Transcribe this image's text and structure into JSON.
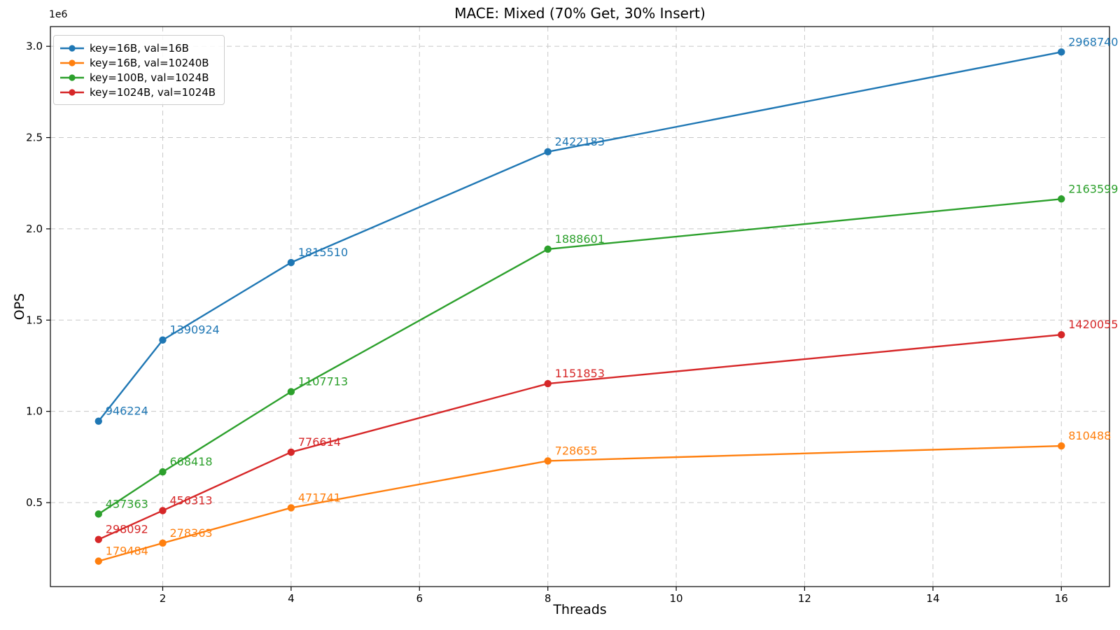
{
  "figure": {
    "background": "#ffffff",
    "grid_color": "#c8c8c8",
    "spine_color": "#000000"
  },
  "chart_data": {
    "type": "line",
    "title": "MACE: Mixed (70% Get, 30% Insert)",
    "xlabel": "Threads",
    "ylabel": "OPS",
    "y_offset_text": "1e6",
    "grid": true,
    "legend_position": "upper left",
    "x": [
      1,
      2,
      4,
      8,
      16
    ],
    "xlim": [
      0.25,
      16.75
    ],
    "ylim": [
      40000,
      3108000
    ],
    "x_ticks": [
      2,
      4,
      6,
      8,
      10,
      12,
      14,
      16
    ],
    "x_tick_labels": [
      "2",
      "4",
      "6",
      "8",
      "10",
      "12",
      "14",
      "16"
    ],
    "y_ticks": [
      500000,
      1000000,
      1500000,
      2000000,
      2500000,
      3000000
    ],
    "y_tick_labels": [
      "0.5",
      "1.0",
      "1.5",
      "2.0",
      "2.5",
      "3.0"
    ],
    "series": [
      {
        "name": "key=16B, val=16B",
        "color": "#1f77b4",
        "values": [
          946224,
          1390924,
          1815510,
          2422183,
          2968740
        ]
      },
      {
        "name": "key=16B, val=10240B",
        "color": "#ff7f0e",
        "values": [
          179484,
          278363,
          471741,
          728655,
          810488
        ]
      },
      {
        "name": "key=100B, val=1024B",
        "color": "#2ca02c",
        "values": [
          437363,
          668418,
          1107713,
          1888601,
          2163599
        ]
      },
      {
        "name": "key=1024B, val=1024B",
        "color": "#d62728",
        "values": [
          298092,
          456313,
          776614,
          1151853,
          1420055
        ]
      }
    ]
  }
}
